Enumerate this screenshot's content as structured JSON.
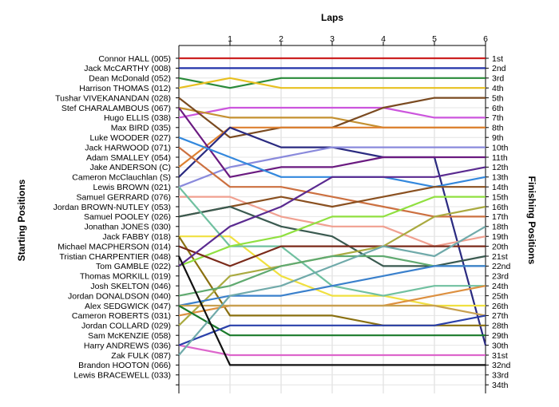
{
  "chart_data": {
    "type": "line",
    "top_axis_title": "Laps",
    "left_axis_title": "Starting Positions",
    "right_axis_title": "Finishing Positions",
    "laps": [
      1,
      2,
      3,
      4,
      5,
      6
    ],
    "starting_labels": [
      "Connor HALL (005)",
      "Jack McCARTHY (008)",
      "Dean McDonald (052)",
      "Harrison THOMAS (012)",
      "Tushar VIVEKANANDAN (028)",
      "Stef CHARALAMBOUS (067)",
      "Hugo ELLIS (038)",
      "Max BIRD (035)",
      "Luke WOODER (027)",
      "Jack HARWOOD (071)",
      "Adam SMALLEY (054)",
      "Jake ANDERSON (C)",
      "Cameron McClauchlan (S)",
      "Lewis BROWN (021)",
      "Samuel GERRARD (076)",
      "Jordan BROWN-NUTLEY (053)",
      "Samuel POOLEY (026)",
      "Jonathan JONES (030)",
      "Jack FABBY (018)",
      "Michael MACPHERSON (014)",
      "Tristian CHARPENTIER (048)",
      "Tom GAMBLE (022)",
      "Thomas MORKILL (019)",
      "Josh SKELTON (046)",
      "Jordan DONALDSON (040)",
      "Alex SEDGWICK (047)",
      "Cameron ROBERTS (031)",
      "Jordan COLLARD (029)",
      "Sam McKENZIE (058)",
      "Harry ANDREWS (036)",
      "Zak FULK (087)",
      "Brandon HOOTON (066)",
      "Lewis BRACEWELL (033)"
    ],
    "finishing_labels": [
      "1st",
      "2nd",
      "3rd",
      "4th",
      "5th",
      "6th",
      "7th",
      "8th",
      "9th",
      "10th",
      "11th",
      "12th",
      "13th",
      "14th",
      "15th",
      "16th",
      "17th",
      "18th",
      "19th",
      "20th",
      "21st",
      "22nd",
      "23rd",
      "24th",
      "25th",
      "26th",
      "27th",
      "28th",
      "29th",
      "30th",
      "31st",
      "32nd",
      "33rd",
      "34th"
    ],
    "grid": true,
    "series": [
      {
        "color": "#cc2222",
        "positions": [
          1,
          1,
          1,
          1,
          1,
          1,
          1
        ]
      },
      {
        "color": "#2233aa",
        "positions": [
          2,
          2,
          2,
          2,
          2,
          2,
          2
        ]
      },
      {
        "color": "#2a8a3a",
        "positions": [
          3,
          4,
          3,
          3,
          3,
          3,
          3
        ]
      },
      {
        "color": "#e8c020",
        "positions": [
          4,
          3,
          4,
          4,
          4,
          4,
          4
        ]
      },
      {
        "color": "#dd66cc",
        "positions": [
          30,
          31,
          31,
          31,
          31,
          31,
          31
        ]
      },
      {
        "color": "#cc55dd",
        "positions": [
          7,
          6,
          6,
          6,
          6,
          7,
          7
        ]
      },
      {
        "color": "#c49030",
        "positions": [
          6,
          7,
          7,
          7,
          8,
          8,
          8
        ]
      },
      {
        "color": "#7a4a20",
        "positions": [
          5,
          9,
          8,
          8,
          6,
          5,
          5
        ]
      },
      {
        "color": "#dd8030",
        "positions": [
          12,
          8,
          8,
          8,
          8,
          8,
          8
        ]
      },
      {
        "color": "#2a2a80",
        "positions": [
          13,
          8,
          10,
          10,
          11,
          11,
          30
        ]
      },
      {
        "color": "#8a8adc",
        "positions": [
          14,
          12,
          11,
          10,
          10,
          10,
          10
        ]
      },
      {
        "color": "#6a1a80",
        "positions": [
          6,
          13,
          12,
          12,
          11,
          11,
          11
        ]
      },
      {
        "color": "#3388dd",
        "positions": [
          9,
          11,
          13,
          13,
          13,
          14,
          13
        ]
      },
      {
        "color": "#cc7040",
        "positions": [
          10,
          14,
          14,
          15,
          16,
          17,
          17
        ]
      },
      {
        "color": "#f0a090",
        "positions": [
          15,
          15,
          17,
          18,
          18,
          20,
          19
        ]
      },
      {
        "color": "#8a5020",
        "positions": [
          17,
          16,
          15,
          16,
          15,
          14,
          14
        ]
      },
      {
        "color": "#3a5a50",
        "positions": [
          17,
          16,
          18,
          19,
          22,
          22,
          21
        ]
      },
      {
        "color": "#f0e040",
        "positions": [
          19,
          19,
          23,
          25,
          25,
          26,
          26
        ]
      },
      {
        "color": "#70c0a0",
        "positions": [
          14,
          20,
          20,
          24,
          25,
          24,
          24
        ]
      },
      {
        "color": "#8a7010",
        "positions": [
          19,
          27,
          27,
          27,
          28,
          28,
          28
        ]
      },
      {
        "color": "#90e040",
        "positions": [
          22,
          20,
          19,
          17,
          17,
          15,
          15
        ]
      },
      {
        "color": "#7a2a1a",
        "positions": [
          20,
          22,
          20,
          20,
          20,
          20,
          20
        ]
      },
      {
        "color": "#5a2a90",
        "positions": [
          22,
          18,
          16,
          13,
          13,
          13,
          12
        ]
      },
      {
        "color": "#aaaa40",
        "positions": [
          28,
          23,
          22,
          21,
          20,
          17,
          16
        ]
      },
      {
        "color": "#60aa70",
        "positions": [
          25,
          24,
          22,
          21,
          21,
          22,
          22
        ]
      },
      {
        "color": "#3a80cc",
        "positions": [
          26,
          25,
          25,
          24,
          23,
          22,
          22
        ]
      },
      {
        "color": "#dd9040",
        "positions": [
          27,
          26,
          26,
          26,
          26,
          25,
          24
        ]
      },
      {
        "color": "#c8a050",
        "positions": [
          26,
          26,
          26,
          26,
          26,
          26,
          27
        ]
      },
      {
        "color": "#1a7a2a",
        "positions": [
          26,
          29,
          29,
          29,
          29,
          29,
          29
        ]
      },
      {
        "color": "#2a40aa",
        "positions": [
          30,
          28,
          28,
          28,
          28,
          28,
          27
        ]
      },
      {
        "color": "#70aaaa",
        "positions": [
          31,
          25,
          24,
          22,
          20,
          21,
          18
        ]
      },
      {
        "color": "#111111",
        "positions": [
          21,
          32,
          32,
          32,
          32,
          32,
          32
        ]
      }
    ]
  }
}
